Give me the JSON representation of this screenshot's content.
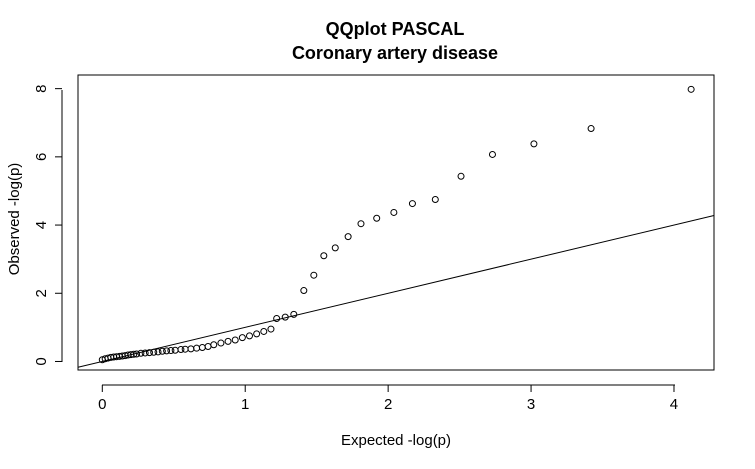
{
  "chart_data": {
    "type": "scatter",
    "title": "QQplot PASCAL",
    "subtitle": "Coronary artery disease",
    "xlabel": "Expected -log(p)",
    "ylabel": "Observed -log(p)",
    "xlim": [
      -0.17,
      4.28
    ],
    "ylim": [
      -0.25,
      8.4
    ],
    "xticks": [
      0,
      1,
      2,
      3,
      4
    ],
    "yticks": [
      0,
      2,
      4,
      6,
      8
    ],
    "xtick_labels": [
      "0",
      "1",
      "2",
      "3",
      "4"
    ],
    "ytick_labels": [
      "0",
      "2",
      "4",
      "6",
      "8"
    ],
    "grid": false,
    "reference_line": {
      "slope": 1,
      "intercept": 0
    },
    "points": [
      [
        0.0,
        0.05
      ],
      [
        0.02,
        0.08
      ],
      [
        0.04,
        0.1
      ],
      [
        0.06,
        0.12
      ],
      [
        0.08,
        0.13
      ],
      [
        0.1,
        0.14
      ],
      [
        0.12,
        0.15
      ],
      [
        0.14,
        0.16
      ],
      [
        0.16,
        0.17
      ],
      [
        0.18,
        0.19
      ],
      [
        0.2,
        0.2
      ],
      [
        0.22,
        0.21
      ],
      [
        0.24,
        0.22
      ],
      [
        0.27,
        0.24
      ],
      [
        0.3,
        0.25
      ],
      [
        0.33,
        0.26
      ],
      [
        0.36,
        0.27
      ],
      [
        0.39,
        0.28
      ],
      [
        0.42,
        0.3
      ],
      [
        0.45,
        0.31
      ],
      [
        0.48,
        0.32
      ],
      [
        0.51,
        0.33
      ],
      [
        0.55,
        0.35
      ],
      [
        0.58,
        0.36
      ],
      [
        0.62,
        0.37
      ],
      [
        0.66,
        0.39
      ],
      [
        0.7,
        0.41
      ],
      [
        0.74,
        0.44
      ],
      [
        0.78,
        0.49
      ],
      [
        0.83,
        0.54
      ],
      [
        0.88,
        0.59
      ],
      [
        0.93,
        0.63
      ],
      [
        0.98,
        0.7
      ],
      [
        1.03,
        0.75
      ],
      [
        1.08,
        0.81
      ],
      [
        1.13,
        0.88
      ],
      [
        1.18,
        0.95
      ],
      [
        1.22,
        1.26
      ],
      [
        1.28,
        1.3
      ],
      [
        1.34,
        1.38
      ],
      [
        1.41,
        2.08
      ],
      [
        1.48,
        2.53
      ],
      [
        1.55,
        3.1
      ],
      [
        1.63,
        3.33
      ],
      [
        1.72,
        3.66
      ],
      [
        1.81,
        4.04
      ],
      [
        1.92,
        4.2
      ],
      [
        2.04,
        4.37
      ],
      [
        2.17,
        4.63
      ],
      [
        2.33,
        4.75
      ],
      [
        2.51,
        5.43
      ],
      [
        2.73,
        6.07
      ],
      [
        3.02,
        6.38
      ],
      [
        3.42,
        6.83
      ],
      [
        4.12,
        7.98
      ]
    ]
  }
}
